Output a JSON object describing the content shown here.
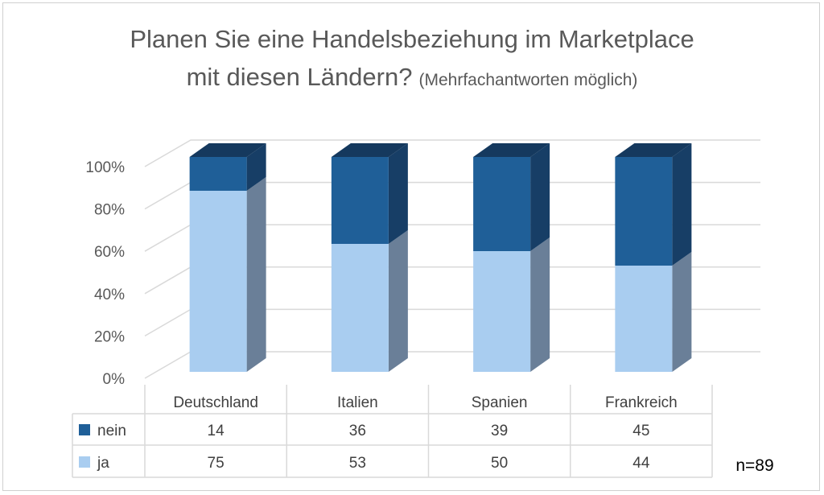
{
  "chart_data": {
    "type": "bar",
    "stacked": true,
    "normalized_percent": true,
    "title_main_1": "Planen Sie eine Handelsbeziehung im Marketplace",
    "title_main_2": "mit diesen Ländern?",
    "title_sub": "(Mehrfachantworten möglich)",
    "categories": [
      "Deutschland",
      "Italien",
      "Spanien",
      "Frankreich"
    ],
    "series": [
      {
        "name": "ja",
        "values": [
          75,
          53,
          50,
          44
        ]
      },
      {
        "name": "nein",
        "values": [
          14,
          36,
          39,
          45
        ]
      }
    ],
    "y_ticks": [
      "0%",
      "20%",
      "40%",
      "60%",
      "80%",
      "100%"
    ],
    "ylim": [
      0,
      100
    ],
    "grid": true,
    "legend": "data-table",
    "colors": {
      "ja_front": "#a9cdf0",
      "ja_side": "#6a7f98",
      "nein_front": "#1f5f98",
      "nein_side": "#173e66",
      "nein_top": "#15395e",
      "grid": "#d9d9d9"
    },
    "note": "n=89"
  }
}
